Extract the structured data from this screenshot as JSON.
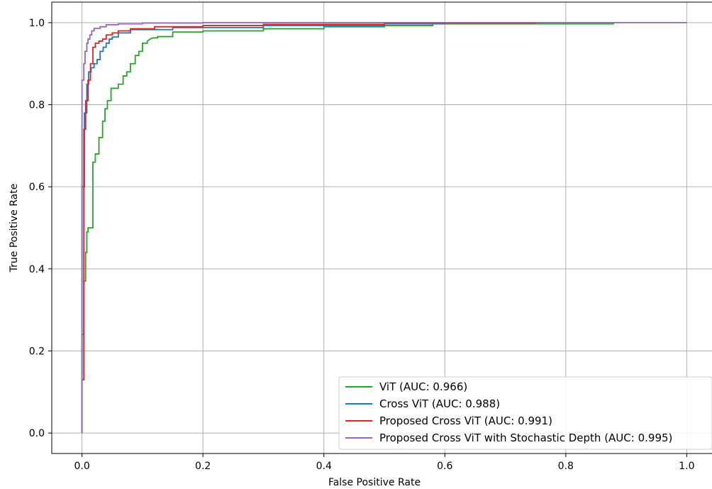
{
  "chart_data": {
    "type": "line",
    "title": "",
    "xlabel": "False Positive Rate",
    "ylabel": "True Positive Rate",
    "xlim": [
      -0.05,
      1.05
    ],
    "ylim": [
      -0.05,
      1.05
    ],
    "xticks": [
      0.0,
      0.2,
      0.4,
      0.6,
      0.8,
      1.0
    ],
    "yticks": [
      0.0,
      0.2,
      0.4,
      0.6,
      0.8,
      1.0
    ],
    "xtick_labels": [
      "0.0",
      "0.2",
      "0.4",
      "0.6",
      "0.8",
      "1.0"
    ],
    "ytick_labels": [
      "0.0",
      "0.2",
      "0.4",
      "0.6",
      "0.8",
      "1.0"
    ],
    "grid": true,
    "legend_position": "lower-right",
    "series": [
      {
        "name": "ViT (AUC: 0.966)",
        "color": "#2ca02c",
        "x": [
          0.0,
          0.0,
          0.003,
          0.003,
          0.006,
          0.006,
          0.008,
          0.008,
          0.01,
          0.01,
          0.018,
          0.018,
          0.022,
          0.022,
          0.028,
          0.028,
          0.034,
          0.034,
          0.038,
          0.038,
          0.042,
          0.042,
          0.048,
          0.048,
          0.052,
          0.06,
          0.06,
          0.068,
          0.068,
          0.074,
          0.074,
          0.08,
          0.08,
          0.088,
          0.088,
          0.094,
          0.094,
          0.1,
          0.1,
          0.108,
          0.108,
          0.115,
          0.12,
          0.125,
          0.125,
          0.15,
          0.15,
          0.2,
          0.2,
          0.3,
          0.3,
          0.4,
          0.4,
          0.5,
          0.5,
          0.58,
          0.58,
          0.88
        ],
        "y": [
          0.0,
          0.24,
          0.24,
          0.37,
          0.37,
          0.44,
          0.44,
          0.49,
          0.49,
          0.5,
          0.5,
          0.66,
          0.66,
          0.68,
          0.68,
          0.72,
          0.72,
          0.76,
          0.76,
          0.79,
          0.79,
          0.81,
          0.81,
          0.84,
          0.84,
          0.84,
          0.85,
          0.85,
          0.87,
          0.87,
          0.88,
          0.88,
          0.9,
          0.9,
          0.92,
          0.92,
          0.93,
          0.93,
          0.95,
          0.95,
          0.955,
          0.962,
          0.963,
          0.963,
          0.966,
          0.966,
          0.977,
          0.977,
          0.98,
          0.98,
          0.985,
          0.985,
          0.99,
          0.99,
          0.993,
          0.993,
          0.997,
          0.997
        ]
      },
      {
        "name": "Cross ViT (AUC: 0.988)",
        "color": "#1f77b4",
        "x": [
          0.0,
          0.0,
          0.004,
          0.004,
          0.008,
          0.008,
          0.011,
          0.011,
          0.015,
          0.015,
          0.02,
          0.02,
          0.025,
          0.025,
          0.03,
          0.03,
          0.035,
          0.035,
          0.04,
          0.04,
          0.045,
          0.045,
          0.05,
          0.05,
          0.06,
          0.06,
          0.08,
          0.08,
          0.15,
          0.15,
          0.3,
          0.3,
          0.5,
          0.5,
          0.6
        ],
        "y": [
          0.0,
          0.6,
          0.6,
          0.78,
          0.78,
          0.85,
          0.85,
          0.88,
          0.88,
          0.89,
          0.89,
          0.9,
          0.9,
          0.91,
          0.91,
          0.93,
          0.93,
          0.94,
          0.94,
          0.95,
          0.95,
          0.96,
          0.96,
          0.965,
          0.965,
          0.975,
          0.975,
          0.983,
          0.983,
          0.988,
          0.988,
          0.993,
          0.993,
          0.997,
          0.997
        ]
      },
      {
        "name": "Proposed Cross ViT (AUC: 0.991)",
        "color": "#d62728",
        "x": [
          0.0,
          0.0,
          0.003,
          0.003,
          0.006,
          0.006,
          0.01,
          0.01,
          0.014,
          0.014,
          0.018,
          0.018,
          0.022,
          0.022,
          0.028,
          0.028,
          0.034,
          0.034,
          0.04,
          0.04,
          0.05,
          0.05,
          0.06,
          0.06,
          0.08,
          0.08,
          0.12,
          0.12,
          0.2,
          0.2,
          0.3,
          0.3,
          0.5,
          0.5,
          0.75
        ],
        "y": [
          0.0,
          0.13,
          0.13,
          0.74,
          0.74,
          0.81,
          0.81,
          0.86,
          0.86,
          0.9,
          0.9,
          0.94,
          0.94,
          0.95,
          0.95,
          0.955,
          0.955,
          0.96,
          0.96,
          0.97,
          0.97,
          0.975,
          0.975,
          0.98,
          0.98,
          0.985,
          0.985,
          0.99,
          0.99,
          0.993,
          0.993,
          0.996,
          0.996,
          0.999,
          0.999
        ]
      },
      {
        "name": "Proposed Cross ViT with Stochastic Depth (AUC: 0.995)",
        "color": "#9467bd",
        "x": [
          0.0,
          0.0,
          0.003,
          0.003,
          0.005,
          0.005,
          0.008,
          0.008,
          0.01,
          0.01,
          0.013,
          0.013,
          0.016,
          0.016,
          0.02,
          0.02,
          0.03,
          0.03,
          0.04,
          0.04,
          0.06,
          0.06,
          0.1,
          0.1,
          0.2,
          0.2,
          1.0
        ],
        "y": [
          0.0,
          0.86,
          0.86,
          0.9,
          0.9,
          0.93,
          0.93,
          0.95,
          0.95,
          0.96,
          0.96,
          0.97,
          0.97,
          0.98,
          0.98,
          0.986,
          0.986,
          0.99,
          0.99,
          0.995,
          0.995,
          0.997,
          0.997,
          0.999,
          0.999,
          1.0,
          1.0
        ]
      }
    ]
  }
}
